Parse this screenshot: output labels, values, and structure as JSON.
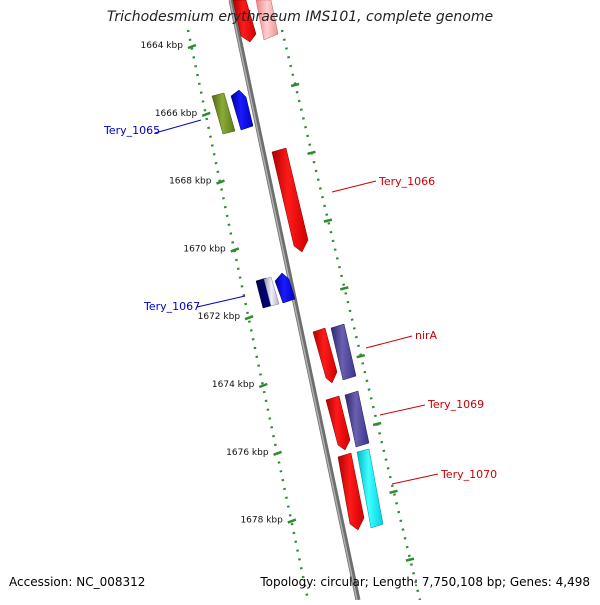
{
  "header": {
    "title": "Trichodesmium erythraeum IMS101, complete genome"
  },
  "footer": {
    "accession": "Accession: NC_008312",
    "topology": "Topology: circular; Length: 7,750,108 bp; Genes: 4,498"
  },
  "ruler_labels": [
    {
      "kbp": 1664,
      "label": "1664 kbp"
    },
    {
      "kbp": 1666,
      "label": "1666 kbp"
    },
    {
      "kbp": 1668,
      "label": "1668 kbp"
    },
    {
      "kbp": 1670,
      "label": "1670 kbp"
    },
    {
      "kbp": 1672,
      "label": "1672 kbp"
    },
    {
      "kbp": 1674,
      "label": "1674 kbp"
    },
    {
      "kbp": 1676,
      "label": "1676 kbp"
    },
    {
      "kbp": 1678,
      "label": "1678 kbp"
    }
  ],
  "genes": [
    {
      "name": "Tery_1065",
      "strand": "minus",
      "color": "#0000cc"
    },
    {
      "name": "Tery_1066",
      "strand": "plus",
      "color": "#cc0000"
    },
    {
      "name": "Tery_1067",
      "strand": "minus",
      "color": "#0000cc"
    },
    {
      "name": "nirA",
      "strand": "plus",
      "color": "#cc0000"
    },
    {
      "name": "Tery_1069",
      "strand": "plus",
      "color": "#cc0000"
    },
    {
      "name": "Tery_1070",
      "strand": "plus",
      "color": "#cc0000"
    }
  ],
  "colors": {
    "backbone": "#8a8a8a",
    "ruler": "#2e8b2e",
    "plus_gene": "#ff0000",
    "minus_gene": "#0000ff",
    "olive": "#6b8e23",
    "slate": "#483d8b",
    "cyan": "#00e5ee",
    "navy": "#000080",
    "silver": "#c0c0c0"
  }
}
